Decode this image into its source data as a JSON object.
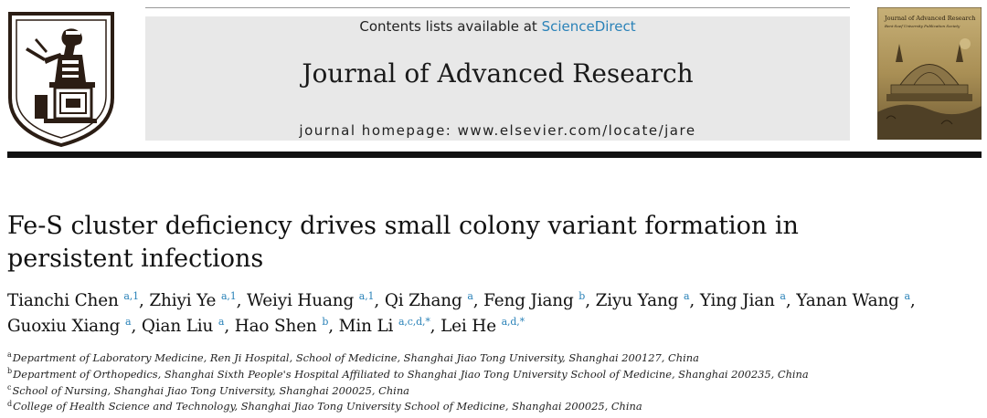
{
  "header": {
    "contents_prefix": "Contents lists available at",
    "contents_link": "ScienceDirect",
    "journal_name": "Journal of Advanced Research",
    "homepage": "journal homepage: www.elsevier.com/locate/jare"
  },
  "cover": {
    "title": "Journal of Advanced Research",
    "subtitle": "Beni-Suef University Publication Society"
  },
  "article": {
    "title_line1": "Fe-S cluster deficiency drives small colony variant formation in",
    "title_line2": "persistent infections"
  },
  "authors": [
    {
      "name": "Tianchi Chen",
      "sup": "a,1",
      "sep": ", "
    },
    {
      "name": "Zhiyi Ye",
      "sup": "a,1",
      "sep": ", "
    },
    {
      "name": "Weiyi Huang",
      "sup": "a,1",
      "sep": ", "
    },
    {
      "name": "Qi Zhang",
      "sup": "a",
      "sep": ", "
    },
    {
      "name": "Feng Jiang",
      "sup": "b",
      "sep": ", "
    },
    {
      "name": "Ziyu Yang",
      "sup": "a",
      "sep": ", "
    },
    {
      "name": "Ying Jian",
      "sup": "a",
      "sep": ", "
    },
    {
      "name": "Yanan Wang",
      "sup": "a",
      "sep": ","
    },
    {
      "name": "Guoxiu Xiang",
      "sup": "a",
      "sep": ", "
    },
    {
      "name": "Qian Liu",
      "sup": "a",
      "sep": ", "
    },
    {
      "name": "Hao Shen",
      "sup": "b",
      "sep": ", "
    },
    {
      "name": "Min Li",
      "sup": "a,c,d,*",
      "sep": ", "
    },
    {
      "name": "Lei He",
      "sup": "a,d,*",
      "sep": ""
    }
  ],
  "affiliations": [
    {
      "mark": "a",
      "text": "Department of Laboratory Medicine, Ren Ji Hospital, School of Medicine, Shanghai Jiao Tong University, Shanghai 200127, China"
    },
    {
      "mark": "b",
      "text": "Department of Orthopedics, Shanghai Sixth People's Hospital Affiliated to Shanghai Jiao Tong University School of Medicine, Shanghai 200235, China"
    },
    {
      "mark": "c",
      "text": "School of Nursing, Shanghai Jiao Tong University, Shanghai 200025, China"
    },
    {
      "mark": "d",
      "text": "College of Health Science and Technology, Shanghai Jiao Tong University School of Medicine, Shanghai 200025, China"
    }
  ],
  "colors": {
    "link": "#2a82b8",
    "rule": "#111111",
    "header_bg": "#e8e8e8"
  }
}
